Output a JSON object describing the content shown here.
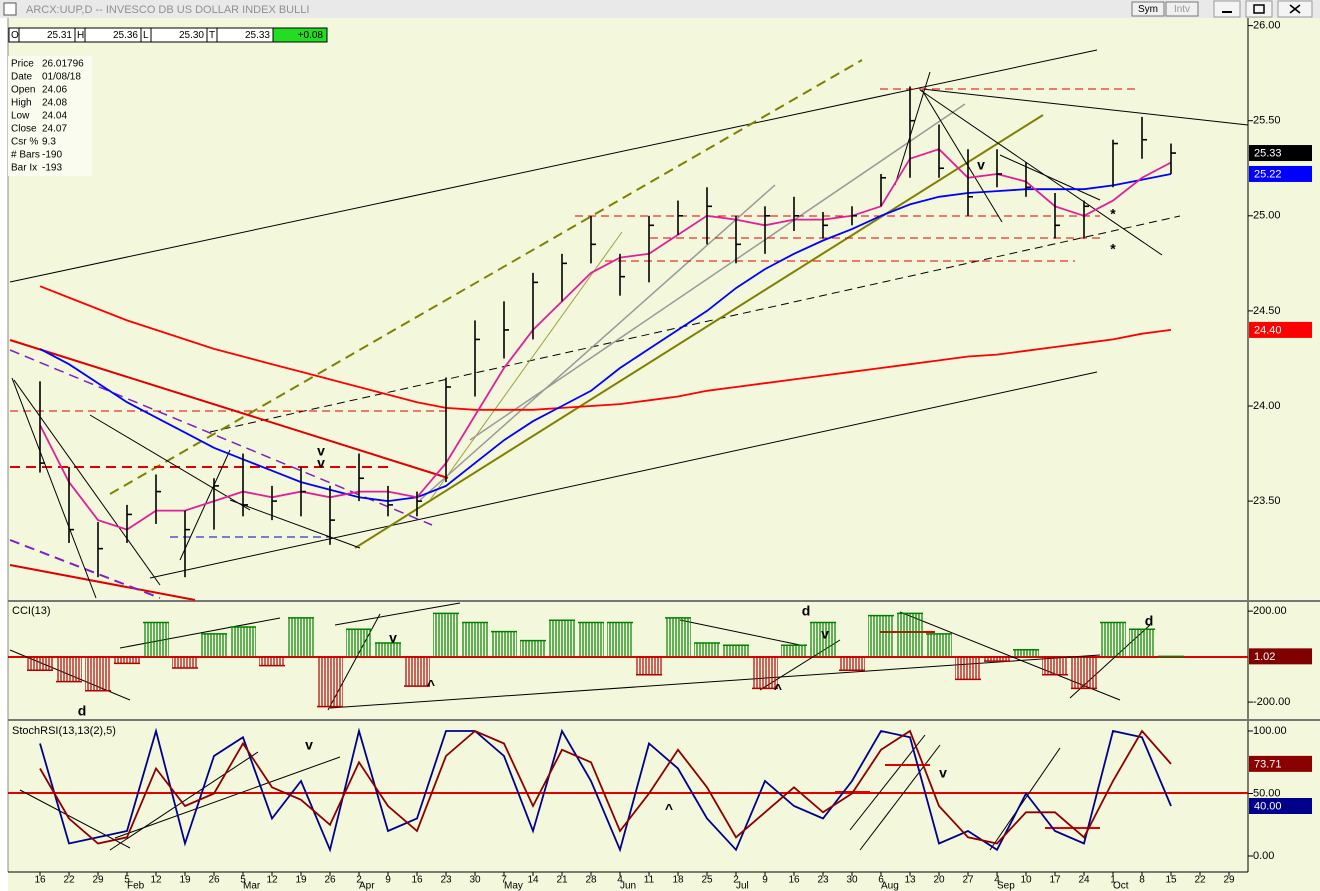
{
  "window": {
    "title": "ARCX:UUP,D -- INVESCO DB US DOLLAR INDEX BULLI",
    "buttons": [
      "Sym",
      "Intv"
    ]
  },
  "ohlc_strip": {
    "items": [
      {
        "key": "O",
        "value": "25.31"
      },
      {
        "key": "H",
        "value": "25.36"
      },
      {
        "key": "L",
        "value": "25.30"
      },
      {
        "key": "T",
        "value": "25.33"
      }
    ],
    "change": "+0.08"
  },
  "cursor_info": [
    {
      "key": "Price",
      "value": "26.01796"
    },
    {
      "key": "Date",
      "value": "01/08/18"
    },
    {
      "key": "Open",
      "value": "24.06"
    },
    {
      "key": "High",
      "value": "24.08"
    },
    {
      "key": "Low",
      "value": "24.04"
    },
    {
      "key": "Close",
      "value": "24.07"
    },
    {
      "key": "Csr %",
      "value": "9.3"
    },
    {
      "key": "# Bars",
      "value": "-190"
    },
    {
      "key": "Bar Ix",
      "value": "-193"
    }
  ],
  "annotations": [
    {
      "text": "v",
      "color": "#008000"
    },
    {
      "text": "v",
      "color": "#e0008c"
    },
    {
      "text": "v",
      "color": "#008000"
    },
    {
      "text": "*",
      "color": "#0000ff"
    },
    {
      "text": "*",
      "color": "#e0008c"
    },
    {
      "text": "d",
      "color": "#008000"
    },
    {
      "text": "v",
      "color": "#e00000"
    },
    {
      "text": "^",
      "color": "#0000c0"
    },
    {
      "text": "d",
      "color": "#e00000"
    },
    {
      "text": "v",
      "color": "#e00000"
    },
    {
      "text": "^",
      "color": "#0000c0"
    },
    {
      "text": "d",
      "color": "#e00000"
    },
    {
      "text": "v",
      "color": "#e00000"
    },
    {
      "text": "^",
      "color": "#0000c0"
    },
    {
      "text": "v",
      "color": "#e00000"
    }
  ],
  "chart_data": [
    {
      "type": "ohlc",
      "categories": [
        "16",
        "22",
        "29",
        "5",
        "12",
        "19",
        "26",
        "5",
        "12",
        "19",
        "26",
        "2",
        "9",
        "16",
        "23",
        "30",
        "7",
        "14",
        "21",
        "28",
        "4",
        "11",
        "18",
        "25",
        "2",
        "9",
        "16",
        "23",
        "30",
        "6",
        "13",
        "20",
        "27",
        "4",
        "10",
        "17",
        "24",
        "1",
        "8",
        "15",
        "22",
        "29"
      ],
      "months": [
        null,
        null,
        null,
        "Feb",
        null,
        null,
        null,
        "Mar",
        null,
        null,
        null,
        "Apr",
        null,
        null,
        null,
        null,
        "May",
        null,
        null,
        null,
        "Jun",
        null,
        null,
        null,
        "Jul",
        null,
        null,
        null,
        null,
        "Aug",
        null,
        null,
        null,
        "Sep",
        null,
        null,
        null,
        "Oct",
        null,
        null,
        null,
        null
      ],
      "high": [
        24.13,
        23.68,
        23.39,
        23.48,
        23.64,
        23.45,
        23.62,
        23.75,
        23.58,
        23.68,
        23.58,
        23.75,
        23.58,
        23.55,
        24.15,
        24.45,
        24.55,
        24.7,
        24.8,
        25.0,
        24.8,
        25.0,
        25.08,
        25.15,
        25.0,
        25.05,
        25.1,
        25.02,
        25.05,
        25.22,
        25.68,
        25.48,
        25.35,
        25.35,
        25.28,
        25.12,
        25.08,
        25.4,
        25.52,
        25.38,
        null,
        null
      ],
      "low": [
        23.65,
        23.28,
        23.1,
        23.28,
        23.38,
        23.1,
        23.35,
        23.42,
        23.4,
        23.42,
        23.27,
        23.5,
        23.42,
        23.42,
        23.6,
        24.05,
        24.25,
        24.35,
        24.55,
        24.75,
        24.58,
        24.65,
        24.9,
        24.85,
        24.75,
        24.8,
        24.92,
        24.88,
        24.95,
        25.05,
        25.2,
        25.2,
        25.0,
        25.15,
        25.1,
        24.88,
        24.88,
        25.15,
        25.3,
        25.22,
        null,
        null
      ],
      "close": [
        23.7,
        23.35,
        23.25,
        23.43,
        23.55,
        23.35,
        23.58,
        23.48,
        23.5,
        23.55,
        23.4,
        23.62,
        23.48,
        23.5,
        24.1,
        24.35,
        24.4,
        24.65,
        24.75,
        24.85,
        24.68,
        24.95,
        25.0,
        25.05,
        24.85,
        25.0,
        25.0,
        24.95,
        25.0,
        25.2,
        25.5,
        25.25,
        25.1,
        25.22,
        25.15,
        24.95,
        25.05,
        25.38,
        25.4,
        25.33,
        null,
        null
      ],
      "color": "#000000",
      "close_tag": "25.33",
      "ylim": [
        22.98,
        26.04
      ],
      "yticks": [
        {
          "value": 26,
          "label": "26.00"
        },
        {
          "value": 25.5,
          "label": "25.50"
        },
        {
          "value": 25,
          "label": "25.00"
        },
        {
          "value": 24.5,
          "label": "24.50"
        },
        {
          "value": 24,
          "label": "24.00"
        },
        {
          "value": 23.5,
          "label": "23.50"
        }
      ],
      "series": [
        {
          "color": "#ff0000",
          "tag": "24.40",
          "values": [
            24.63,
            24.57,
            24.51,
            24.45,
            24.4,
            24.35,
            24.3,
            24.26,
            24.22,
            24.18,
            24.14,
            24.1,
            24.06,
            24.02,
            23.99,
            23.98,
            23.98,
            23.98,
            23.99,
            24.0,
            24.01,
            24.03,
            24.05,
            24.08,
            24.1,
            24.12,
            24.14,
            24.16,
            24.18,
            24.2,
            24.22,
            24.24,
            24.26,
            24.27,
            24.29,
            24.31,
            24.33,
            24.35,
            24.38,
            24.4,
            null,
            null
          ]
        },
        {
          "color": "#0000ff",
          "tag": "25.22",
          "values": [
            24.3,
            24.22,
            24.12,
            24.02,
            23.94,
            23.86,
            23.78,
            23.72,
            23.66,
            23.6,
            23.56,
            23.52,
            23.5,
            23.52,
            23.58,
            23.7,
            23.82,
            23.92,
            24.0,
            24.08,
            24.2,
            24.3,
            24.4,
            24.5,
            24.62,
            24.72,
            24.8,
            24.87,
            24.93,
            25.0,
            25.06,
            25.1,
            25.12,
            25.13,
            25.14,
            25.14,
            25.14,
            25.16,
            25.19,
            25.22,
            null,
            null
          ]
        },
        {
          "color": "#e0209a",
          "values": [
            23.9,
            23.6,
            23.4,
            23.35,
            23.45,
            23.45,
            23.5,
            23.55,
            23.52,
            23.55,
            23.52,
            23.55,
            23.55,
            23.52,
            23.7,
            23.95,
            24.2,
            24.4,
            24.55,
            24.7,
            24.78,
            24.8,
            24.9,
            25.0,
            24.98,
            24.95,
            24.98,
            24.98,
            25.0,
            25.05,
            25.3,
            25.35,
            25.2,
            25.22,
            25.18,
            25.05,
            25.0,
            25.08,
            25.2,
            25.28,
            null,
            null
          ]
        }
      ]
    },
    {
      "type": "bar",
      "title": "CCI(13)",
      "values": [
        -60,
        -110,
        -150,
        -30,
        150,
        -50,
        100,
        130,
        -40,
        170,
        -220,
        120,
        60,
        -130,
        190,
        150,
        110,
        70,
        160,
        150,
        150,
        -80,
        170,
        60,
        50,
        -140,
        50,
        150,
        -60,
        180,
        190,
        100,
        -100,
        -20,
        30,
        -80,
        -140,
        150,
        120,
        1.02,
        null,
        null
      ],
      "positive_color": "#008000",
      "negative_color": "#b00000",
      "tag_color": "#800000",
      "ylim": [
        -270,
        240
      ],
      "yticks": [
        {
          "value": 200,
          "label": "200.00"
        },
        {
          "value": -200,
          "label": "-200.00"
        }
      ]
    },
    {
      "type": "line",
      "title": "StochRSI(13,13(2),5)",
      "ylim": [
        -12.8,
        107.2
      ],
      "yticks": [
        {
          "value": 100,
          "label": "100.00"
        },
        {
          "value": 50,
          "label": "50.00"
        },
        {
          "value": 0,
          "label": "0.00"
        }
      ],
      "series": [
        {
          "color": "#00008b",
          "tag": "40.00",
          "values": [
            90,
            10,
            15,
            20,
            100,
            10,
            80,
            95,
            30,
            60,
            5,
            100,
            20,
            30,
            100,
            100,
            80,
            20,
            100,
            60,
            5,
            90,
            70,
            30,
            5,
            60,
            40,
            30,
            60,
            100,
            95,
            10,
            20,
            5,
            50,
            20,
            10,
            100,
            95,
            40,
            null,
            null
          ]
        },
        {
          "color": "#8b0000",
          "tag": "73.71",
          "values": [
            70,
            30,
            10,
            15,
            70,
            40,
            50,
            90,
            55,
            45,
            25,
            75,
            40,
            20,
            80,
            100,
            90,
            40,
            85,
            75,
            20,
            50,
            85,
            55,
            15,
            35,
            55,
            35,
            50,
            85,
            100,
            40,
            15,
            10,
            35,
            35,
            15,
            60,
            100,
            73.71,
            null,
            null
          ]
        }
      ]
    }
  ]
}
